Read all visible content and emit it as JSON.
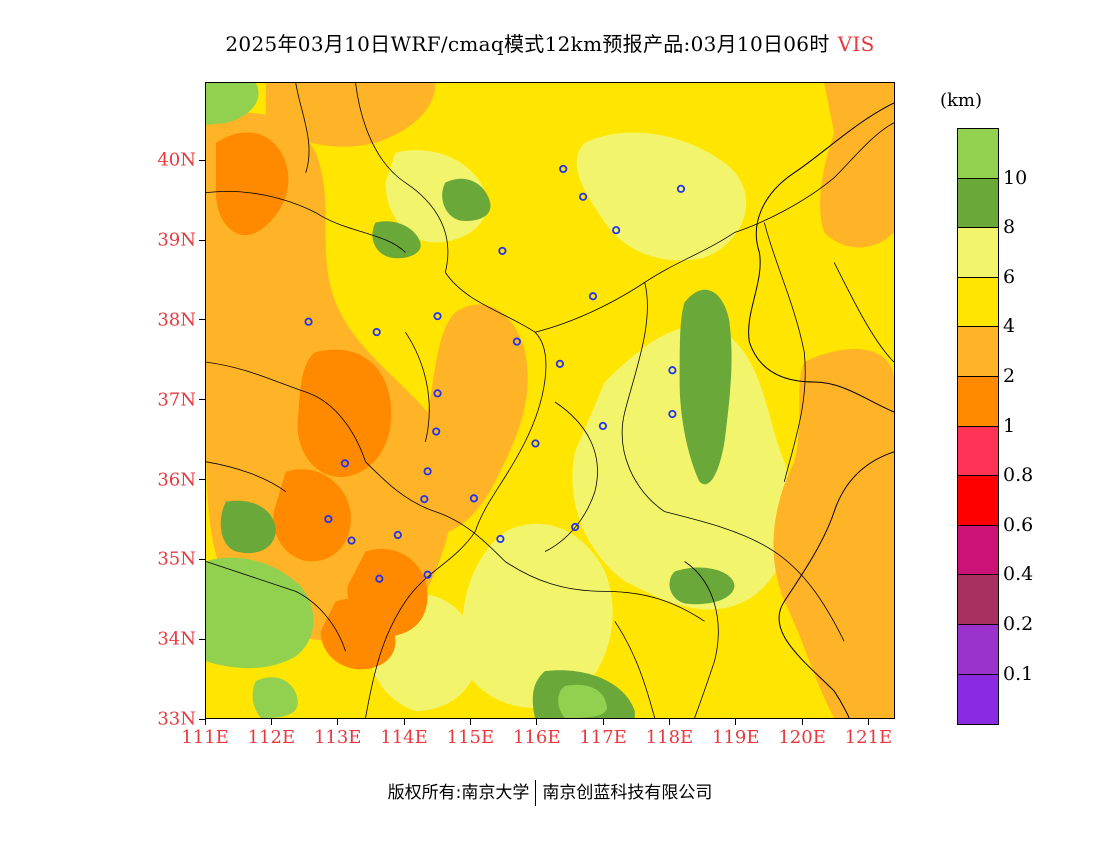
{
  "title": {
    "main": "2025年03月10日WRF/cmaq模式12km预报产品:03月10日06时",
    "variable": "VIS"
  },
  "axes": {
    "lat_labels": [
      "40N",
      "39N",
      "38N",
      "37N",
      "36N",
      "35N",
      "34N",
      "33N"
    ],
    "lat_values": [
      40,
      39,
      38,
      37,
      36,
      35,
      34,
      33
    ],
    "lon_labels": [
      "111E",
      "112E",
      "113E",
      "114E",
      "115E",
      "116E",
      "117E",
      "118E",
      "119E",
      "120E",
      "121E"
    ],
    "lon_values": [
      111,
      112,
      113,
      114,
      115,
      116,
      117,
      118,
      119,
      120,
      121
    ],
    "lat_range": [
      33,
      40.98
    ],
    "lon_range": [
      111,
      121.4
    ]
  },
  "colorbar": {
    "unit": "(km)",
    "labels": [
      "10",
      "8",
      "6",
      "4",
      "2",
      "1",
      "0.8",
      "0.6",
      "0.4",
      "0.2",
      "0.1"
    ],
    "colors": [
      "#92d050",
      "#6aa83a",
      "#f2f56b",
      "#ffe500",
      "#ffb326",
      "#ff8a00",
      "#ff3355",
      "#ff0000",
      "#cc1177",
      "#a83060",
      "#9933cc",
      "#8a2be2"
    ]
  },
  "cities": [
    {
      "lon": 116.4,
      "lat": 39.9
    },
    {
      "lon": 116.7,
      "lat": 39.55
    },
    {
      "lon": 118.18,
      "lat": 39.65
    },
    {
      "lon": 117.2,
      "lat": 39.13
    },
    {
      "lon": 115.48,
      "lat": 38.87
    },
    {
      "lon": 116.85,
      "lat": 38.3
    },
    {
      "lon": 112.55,
      "lat": 37.98
    },
    {
      "lon": 113.58,
      "lat": 37.85
    },
    {
      "lon": 114.5,
      "lat": 38.05
    },
    {
      "lon": 115.7,
      "lat": 37.73
    },
    {
      "lon": 116.35,
      "lat": 37.45
    },
    {
      "lon": 118.05,
      "lat": 37.37
    },
    {
      "lon": 114.5,
      "lat": 37.08
    },
    {
      "lon": 118.05,
      "lat": 36.82
    },
    {
      "lon": 117.0,
      "lat": 36.67
    },
    {
      "lon": 114.48,
      "lat": 36.6
    },
    {
      "lon": 115.98,
      "lat": 36.45
    },
    {
      "lon": 113.1,
      "lat": 36.2
    },
    {
      "lon": 114.35,
      "lat": 36.1
    },
    {
      "lon": 114.3,
      "lat": 35.75
    },
    {
      "lon": 115.05,
      "lat": 35.76
    },
    {
      "lon": 112.85,
      "lat": 35.5
    },
    {
      "lon": 116.58,
      "lat": 35.4
    },
    {
      "lon": 113.9,
      "lat": 35.3
    },
    {
      "lon": 113.2,
      "lat": 35.23
    },
    {
      "lon": 115.45,
      "lat": 35.25
    },
    {
      "lon": 114.35,
      "lat": 34.8
    },
    {
      "lon": 113.62,
      "lat": 34.75
    }
  ],
  "copyright": {
    "left": "版权所有:南京大学",
    "right": "南京创蓝科技有限公司"
  }
}
